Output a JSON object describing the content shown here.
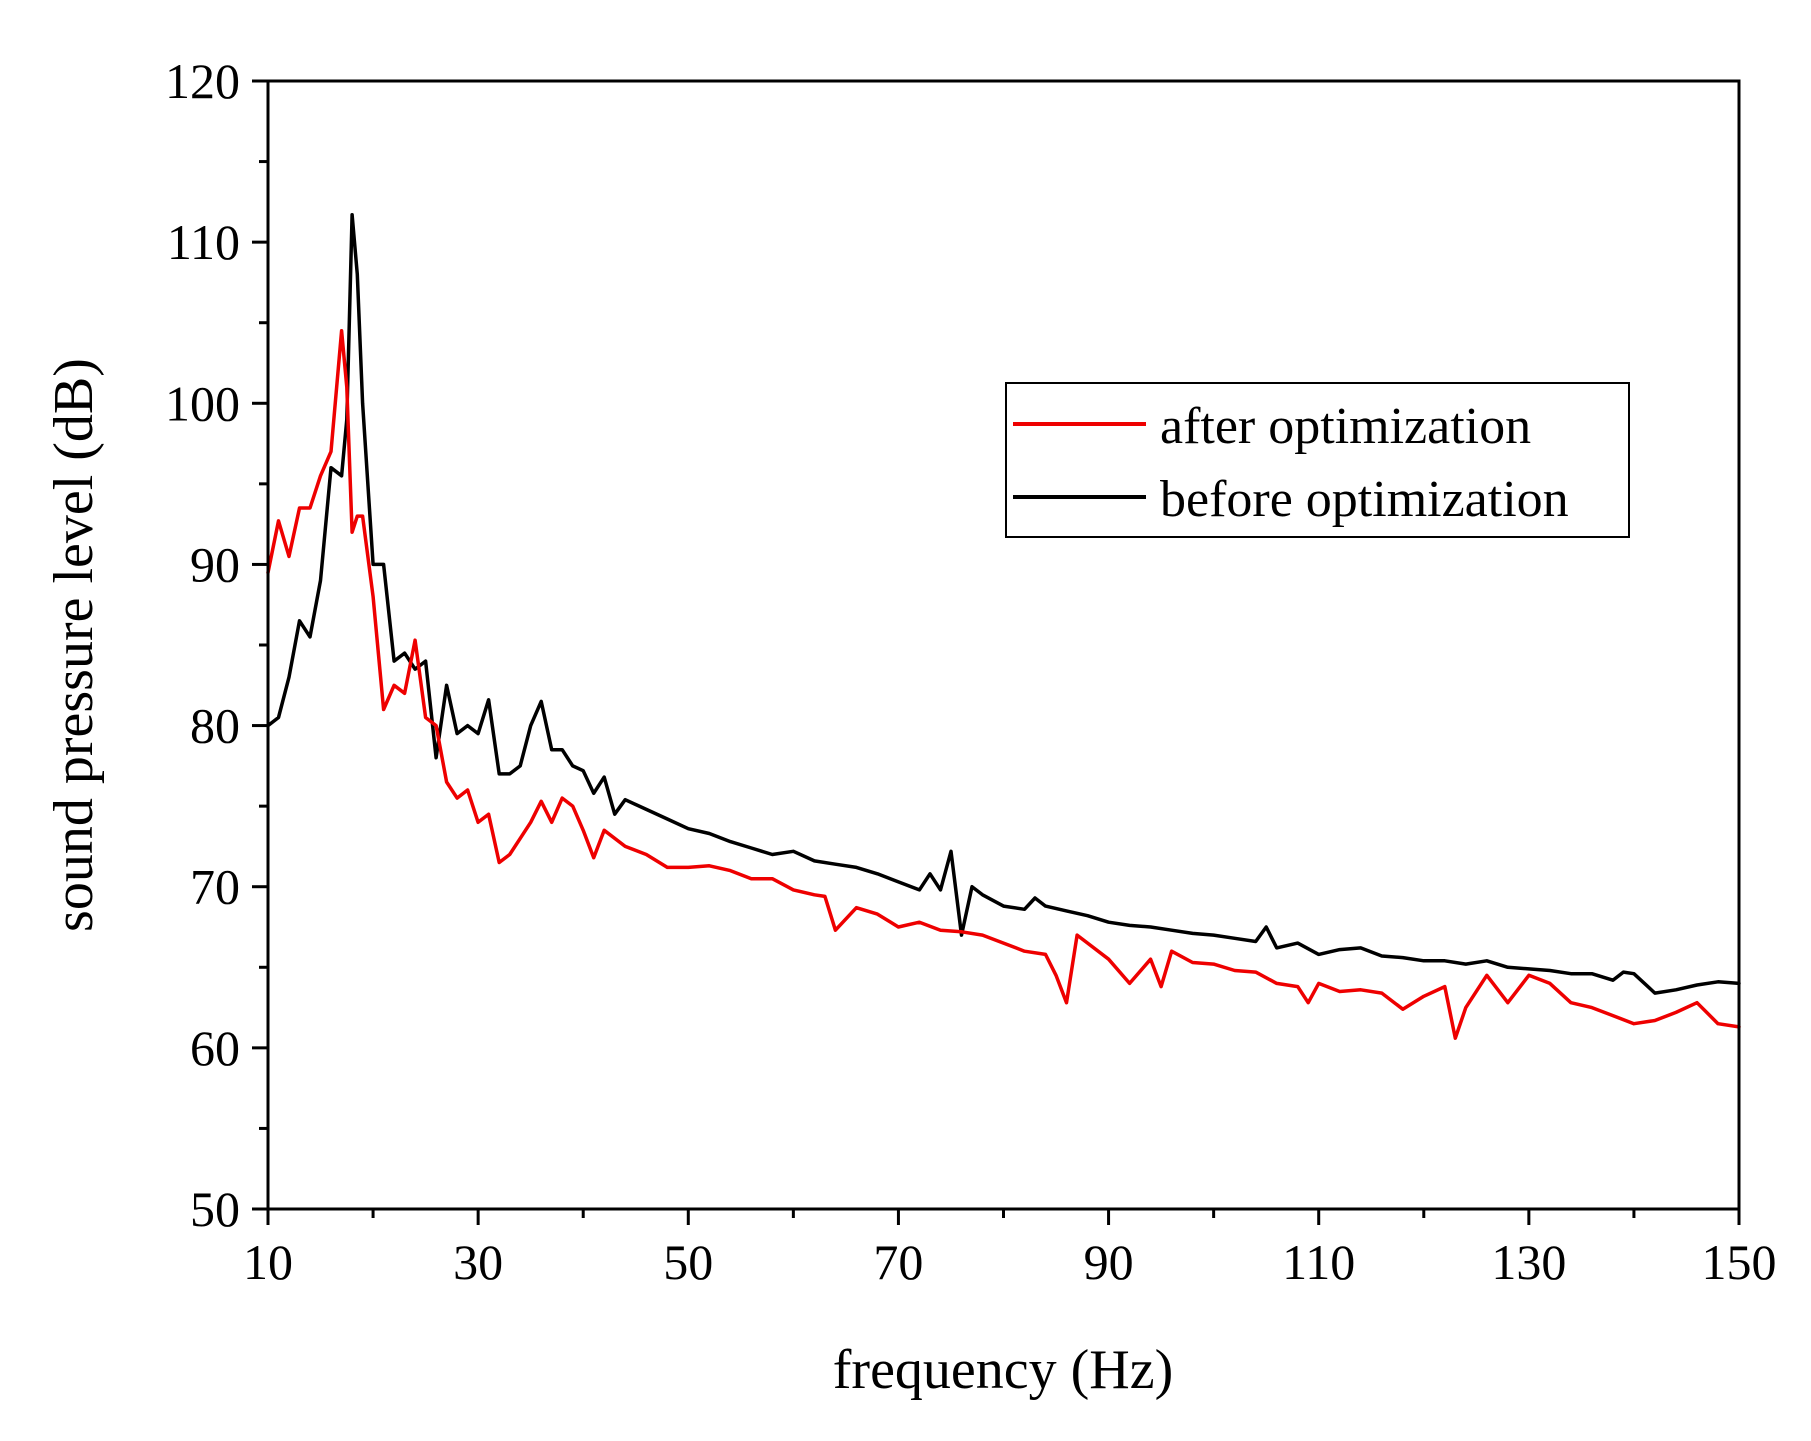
{
  "chart_data": {
    "type": "line",
    "title": "",
    "xlabel": "frequency (Hz)",
    "ylabel": "sound pressure level (dB)",
    "xlim": [
      10,
      150
    ],
    "ylim": [
      50,
      120
    ],
    "xticks": [
      10,
      30,
      50,
      70,
      90,
      110,
      130,
      150
    ],
    "yticks": [
      50,
      60,
      70,
      80,
      90,
      100,
      110,
      120
    ],
    "x_minor_step": 10,
    "y_minor_step": 5,
    "grid": false,
    "legend_position": "top-right",
    "series": [
      {
        "name": "after optimization",
        "color": "#ee0000",
        "x": [
          10,
          11,
          12,
          13,
          14,
          15,
          16,
          17,
          17.5,
          18,
          18.5,
          19,
          20,
          21,
          22,
          23,
          24,
          25,
          26,
          27,
          28,
          29,
          30,
          31,
          32,
          33,
          34,
          35,
          36,
          37,
          38,
          39,
          40,
          41,
          42,
          44,
          46,
          48,
          50,
          52,
          54,
          56,
          58,
          60,
          62,
          63,
          64,
          66,
          68,
          70,
          72,
          74,
          76,
          78,
          80,
          82,
          84,
          85,
          86,
          87,
          88,
          90,
          92,
          94,
          95,
          96,
          98,
          100,
          102,
          104,
          106,
          108,
          109,
          110,
          112,
          114,
          116,
          118,
          120,
          122,
          123,
          124,
          126,
          128,
          130,
          132,
          134,
          136,
          138,
          140,
          142,
          144,
          146,
          148,
          150
        ],
        "values": [
          89.5,
          92.7,
          90.5,
          93.5,
          93.5,
          95.5,
          97,
          104.5,
          101,
          92,
          93,
          93,
          88,
          81,
          82.5,
          82,
          85.3,
          80.5,
          80,
          76.5,
          75.5,
          76,
          74,
          74.5,
          71.5,
          72,
          73,
          74,
          75.3,
          74,
          75.5,
          75,
          73.5,
          71.8,
          73.5,
          72.5,
          72,
          71.2,
          71.2,
          71.3,
          71,
          70.5,
          70.5,
          69.8,
          69.5,
          69.4,
          67.3,
          68.7,
          68.3,
          67.5,
          67.8,
          67.3,
          67.2,
          67,
          66.5,
          66,
          65.8,
          64.5,
          62.8,
          67,
          66.5,
          65.5,
          64,
          65.5,
          63.8,
          66,
          65.3,
          65.2,
          64.8,
          64.7,
          64,
          63.8,
          62.8,
          64,
          63.5,
          63.6,
          63.4,
          62.4,
          63.2,
          63.8,
          60.6,
          62.5,
          64.5,
          62.8,
          64.5,
          64,
          62.8,
          62.5,
          62,
          61.5,
          61.7,
          62.2,
          62.8,
          61.5,
          61.3
        ]
      },
      {
        "name": "before optimization",
        "color": "#000000",
        "x": [
          10,
          11,
          12,
          13,
          14,
          15,
          16,
          17,
          17.5,
          18,
          18.5,
          19,
          20,
          21,
          22,
          23,
          24,
          25,
          26,
          27,
          28,
          29,
          30,
          31,
          32,
          33,
          34,
          35,
          36,
          37,
          38,
          39,
          40,
          41,
          42,
          43,
          44,
          46,
          48,
          50,
          52,
          54,
          56,
          58,
          60,
          62,
          64,
          66,
          68,
          70,
          72,
          73,
          74,
          75,
          76,
          77,
          78,
          80,
          82,
          83,
          84,
          86,
          88,
          90,
          92,
          94,
          96,
          98,
          100,
          102,
          104,
          105,
          106,
          108,
          110,
          112,
          114,
          116,
          118,
          120,
          122,
          124,
          126,
          128,
          130,
          132,
          134,
          136,
          138,
          139,
          140,
          142,
          144,
          146,
          148,
          150
        ],
        "values": [
          80,
          80.5,
          83,
          86.5,
          85.5,
          89,
          96,
          95.5,
          99,
          111.7,
          108,
          100,
          90,
          90,
          84,
          84.5,
          83.5,
          84,
          78,
          82.5,
          79.5,
          80,
          79.5,
          81.6,
          77,
          77,
          77.5,
          80,
          81.5,
          78.5,
          78.5,
          77.5,
          77.2,
          75.8,
          76.8,
          74.5,
          75.4,
          74.8,
          74.2,
          73.6,
          73.3,
          72.8,
          72.4,
          72.0,
          72.2,
          71.6,
          71.4,
          71.2,
          70.8,
          70.3,
          69.8,
          70.8,
          69.8,
          72.2,
          67,
          70,
          69.5,
          68.8,
          68.6,
          69.3,
          68.8,
          68.5,
          68.2,
          67.8,
          67.6,
          67.5,
          67.3,
          67.1,
          67,
          66.8,
          66.6,
          67.5,
          66.2,
          66.5,
          65.8,
          66.1,
          66.2,
          65.7,
          65.6,
          65.4,
          65.4,
          65.2,
          65.4,
          65.0,
          64.9,
          64.8,
          64.6,
          64.6,
          64.2,
          64.7,
          64.6,
          63.4,
          63.6,
          63.9,
          64.1,
          64
        ]
      }
    ]
  }
}
